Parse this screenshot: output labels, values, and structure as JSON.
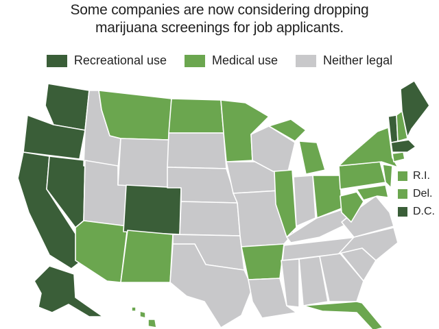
{
  "title": {
    "line1": "Some companies are now considering dropping",
    "line2": "marijuana screenings for job applicants."
  },
  "colors": {
    "recreational": "#3a5e38",
    "medical": "#6ba64f",
    "neither": "#c8c8ca",
    "border": "#ffffff"
  },
  "legend": [
    {
      "label": "Recreational use",
      "category": "recreational"
    },
    {
      "label": "Medical use",
      "category": "medical"
    },
    {
      "label": "Neither legal",
      "category": "neither"
    }
  ],
  "small_states_legend": [
    {
      "label": "R.I.",
      "category": "medical"
    },
    {
      "label": "Del.",
      "category": "medical"
    },
    {
      "label": "D.C.",
      "category": "recreational"
    }
  ],
  "states": {
    "WA": "recreational",
    "OR": "recreational",
    "CA": "recreational",
    "NV": "recreational",
    "AK": "recreational",
    "CO": "recreational",
    "MA": "recreational",
    "ME": "recreational",
    "VT": "recreational",
    "ID": "neither",
    "UT": "neither",
    "WY": "neither",
    "NE": "neither",
    "KS": "neither",
    "OK": "neither",
    "TX": "neither",
    "SD": "neither",
    "IA": "neither",
    "MO": "neither",
    "WI": "neither",
    "IN": "neither",
    "KY": "neither",
    "TN": "neither",
    "MS": "neither",
    "AL": "neither",
    "GA": "neither",
    "SC": "neither",
    "NC": "neither",
    "VA": "neither",
    "LA": "neither",
    "MT": "medical",
    "ND": "medical",
    "MN": "medical",
    "AZ": "medical",
    "NM": "medical",
    "AR": "medical",
    "IL": "medical",
    "MI": "medical",
    "OH": "medical",
    "PA": "medical",
    "NY": "medical",
    "WV": "medical",
    "FL": "medical",
    "HI": "medical",
    "NH": "medical",
    "CT": "medical",
    "NJ": "medical",
    "MD": "medical"
  }
}
